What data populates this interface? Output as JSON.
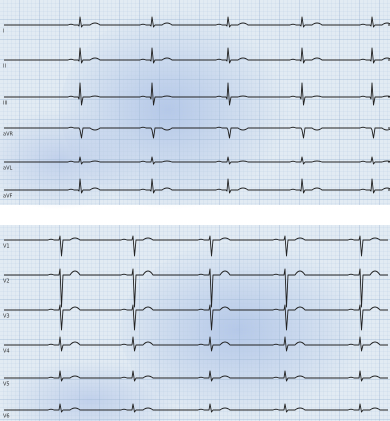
{
  "panels": [
    {
      "leads": [
        {
          "label": "I"
        },
        {
          "label": "II"
        },
        {
          "label": "III"
        },
        {
          "label": "aVR"
        },
        {
          "label": "aVL"
        },
        {
          "label": "aVF"
        }
      ]
    },
    {
      "leads": [
        {
          "label": "V1"
        },
        {
          "label": "V2"
        },
        {
          "label": "V3"
        },
        {
          "label": "V4"
        },
        {
          "label": "V5"
        },
        {
          "label": "V6"
        }
      ]
    }
  ]
}
